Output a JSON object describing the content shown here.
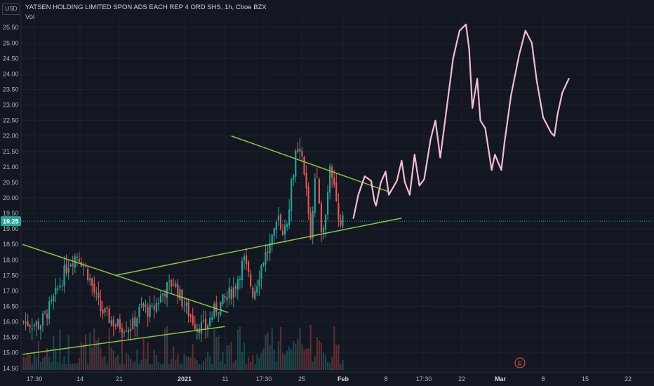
{
  "header": {
    "currency": "USD",
    "symbol": "YATSEN HOLDING LIMITED SPON ADS EACH REP 4 ORD SHS, 1h, Cboe BZX",
    "volume_label": "Vol"
  },
  "price_badge": "19.25",
  "earnings_marker": "E",
  "colors": {
    "background": "#131722",
    "grid": "#1e222d",
    "up": "#26a69a",
    "down": "#ef5350",
    "trendline": "#8bc34a",
    "drawing": "#f8bbd0",
    "price_line": "#26a69a"
  },
  "chart_data": {
    "type": "candlestick",
    "title": "YATSEN HOLDING LIMITED SPON ADS EACH REP 4 ORD SHS, 1h, Cboe BZX",
    "y_axis": {
      "ticks": [
        "25.50",
        "25.00",
        "24.50",
        "24.00",
        "23.50",
        "23.00",
        "22.50",
        "22.00",
        "21.50",
        "21.00",
        "20.50",
        "20.00",
        "19.50",
        "19.00",
        "18.50",
        "18.00",
        "17.50",
        "17.00",
        "16.50",
        "16.00",
        "15.50",
        "15.00",
        "14.50"
      ],
      "range": [
        14.45,
        25.8
      ]
    },
    "x_axis": {
      "ticks": [
        {
          "label": "17:30",
          "bold": false
        },
        {
          "label": "14",
          "bold": false
        },
        {
          "label": "21",
          "bold": false
        },
        {
          "label": "2021",
          "bold": true
        },
        {
          "label": "11",
          "bold": false
        },
        {
          "label": "17:30",
          "bold": false
        },
        {
          "label": "25",
          "bold": false
        },
        {
          "label": "Feb",
          "bold": true
        },
        {
          "label": "8",
          "bold": false
        },
        {
          "label": "17:30",
          "bold": false
        },
        {
          "label": "22",
          "bold": false
        },
        {
          "label": "Mar",
          "bold": true
        },
        {
          "label": "8",
          "bold": false
        },
        {
          "label": "15",
          "bold": false
        },
        {
          "label": "22",
          "bold": false
        }
      ]
    },
    "last_price": 19.25,
    "anchors": [
      {
        "t": 0,
        "p": 16.0
      },
      {
        "t": 0.05,
        "p": 15.9
      },
      {
        "t": 0.09,
        "p": 16.6
      },
      {
        "t": 0.14,
        "p": 17.9
      },
      {
        "t": 0.17,
        "p": 18.2
      },
      {
        "t": 0.2,
        "p": 17.6
      },
      {
        "t": 0.24,
        "p": 16.4
      },
      {
        "t": 0.29,
        "p": 15.9
      },
      {
        "t": 0.34,
        "p": 15.85
      },
      {
        "t": 0.37,
        "p": 16.5
      },
      {
        "t": 0.4,
        "p": 16.3
      },
      {
        "t": 0.44,
        "p": 17.0
      },
      {
        "t": 0.47,
        "p": 17.3
      },
      {
        "t": 0.5,
        "p": 16.6
      },
      {
        "t": 0.54,
        "p": 15.9
      },
      {
        "t": 0.57,
        "p": 15.8
      },
      {
        "t": 0.6,
        "p": 16.4
      },
      {
        "t": 0.63,
        "p": 16.7
      },
      {
        "t": 0.66,
        "p": 17.1
      },
      {
        "t": 0.69,
        "p": 18.0
      },
      {
        "t": 0.72,
        "p": 16.9
      },
      {
        "t": 0.75,
        "p": 18.0
      },
      {
        "t": 0.78,
        "p": 18.6
      },
      {
        "t": 0.8,
        "p": 19.3
      },
      {
        "t": 0.82,
        "p": 18.9
      },
      {
        "t": 0.85,
        "p": 21.3
      },
      {
        "t": 0.87,
        "p": 21.4
      },
      {
        "t": 0.885,
        "p": 20.3
      },
      {
        "t": 0.9,
        "p": 18.7
      },
      {
        "t": 0.915,
        "p": 21.0
      },
      {
        "t": 0.93,
        "p": 19.1
      },
      {
        "t": 0.945,
        "p": 19.3
      },
      {
        "t": 0.96,
        "p": 21.2
      },
      {
        "t": 0.975,
        "p": 20.5
      },
      {
        "t": 0.985,
        "p": 19.3
      },
      {
        "t": 0.993,
        "p": 18.9
      },
      {
        "t": 1.0,
        "p": 19.25
      }
    ],
    "candle_count": 150,
    "trendlines": [
      {
        "name": "early-descending",
        "from": {
          "t": 0.0,
          "p": 18.5
        },
        "to": {
          "t": 0.64,
          "p": 16.3
        }
      },
      {
        "name": "early-ascending",
        "from": {
          "t": 0.0,
          "p": 14.95
        },
        "to": {
          "t": 0.63,
          "p": 15.85
        }
      },
      {
        "name": "main-support",
        "from": {
          "t": 0.29,
          "p": 17.5
        },
        "to": {
          "t": 1.18,
          "p": 19.35
        }
      },
      {
        "name": "main-resistance",
        "from": {
          "t": 0.65,
          "p": 22.0
        },
        "to": {
          "t": 1.14,
          "p": 20.2
        }
      }
    ],
    "projection": [
      {
        "t": 1.03,
        "p": 19.35
      },
      {
        "t": 1.045,
        "p": 20.1
      },
      {
        "t": 1.065,
        "p": 20.7
      },
      {
        "t": 1.085,
        "p": 20.55
      },
      {
        "t": 1.095,
        "p": 19.9
      },
      {
        "t": 1.1,
        "p": 19.75
      },
      {
        "t": 1.115,
        "p": 20.5
      },
      {
        "t": 1.13,
        "p": 20.85
      },
      {
        "t": 1.14,
        "p": 20.1
      },
      {
        "t": 1.165,
        "p": 20.55
      },
      {
        "t": 1.18,
        "p": 21.2
      },
      {
        "t": 1.19,
        "p": 20.5
      },
      {
        "t": 1.205,
        "p": 20.1
      },
      {
        "t": 1.22,
        "p": 21.4
      },
      {
        "t": 1.235,
        "p": 20.4
      },
      {
        "t": 1.25,
        "p": 20.6
      },
      {
        "t": 1.27,
        "p": 21.9
      },
      {
        "t": 1.285,
        "p": 22.5
      },
      {
        "t": 1.3,
        "p": 21.3
      },
      {
        "t": 1.32,
        "p": 22.9
      },
      {
        "t": 1.34,
        "p": 24.5
      },
      {
        "t": 1.36,
        "p": 25.4
      },
      {
        "t": 1.38,
        "p": 25.6
      },
      {
        "t": 1.39,
        "p": 24.8
      },
      {
        "t": 1.4,
        "p": 22.9
      },
      {
        "t": 1.415,
        "p": 23.85
      },
      {
        "t": 1.425,
        "p": 22.5
      },
      {
        "t": 1.44,
        "p": 22.25
      },
      {
        "t": 1.46,
        "p": 20.9
      },
      {
        "t": 1.47,
        "p": 21.4
      },
      {
        "t": 1.49,
        "p": 20.9
      },
      {
        "t": 1.5,
        "p": 21.8
      },
      {
        "t": 1.52,
        "p": 23.3
      },
      {
        "t": 1.545,
        "p": 24.6
      },
      {
        "t": 1.565,
        "p": 25.4
      },
      {
        "t": 1.585,
        "p": 25.0
      },
      {
        "t": 1.6,
        "p": 23.8
      },
      {
        "t": 1.62,
        "p": 22.6
      },
      {
        "t": 1.645,
        "p": 22.1
      },
      {
        "t": 1.655,
        "p": 22.0
      },
      {
        "t": 1.665,
        "p": 22.7
      },
      {
        "t": 1.68,
        "p": 23.4
      },
      {
        "t": 1.7,
        "p": 23.85
      }
    ]
  }
}
